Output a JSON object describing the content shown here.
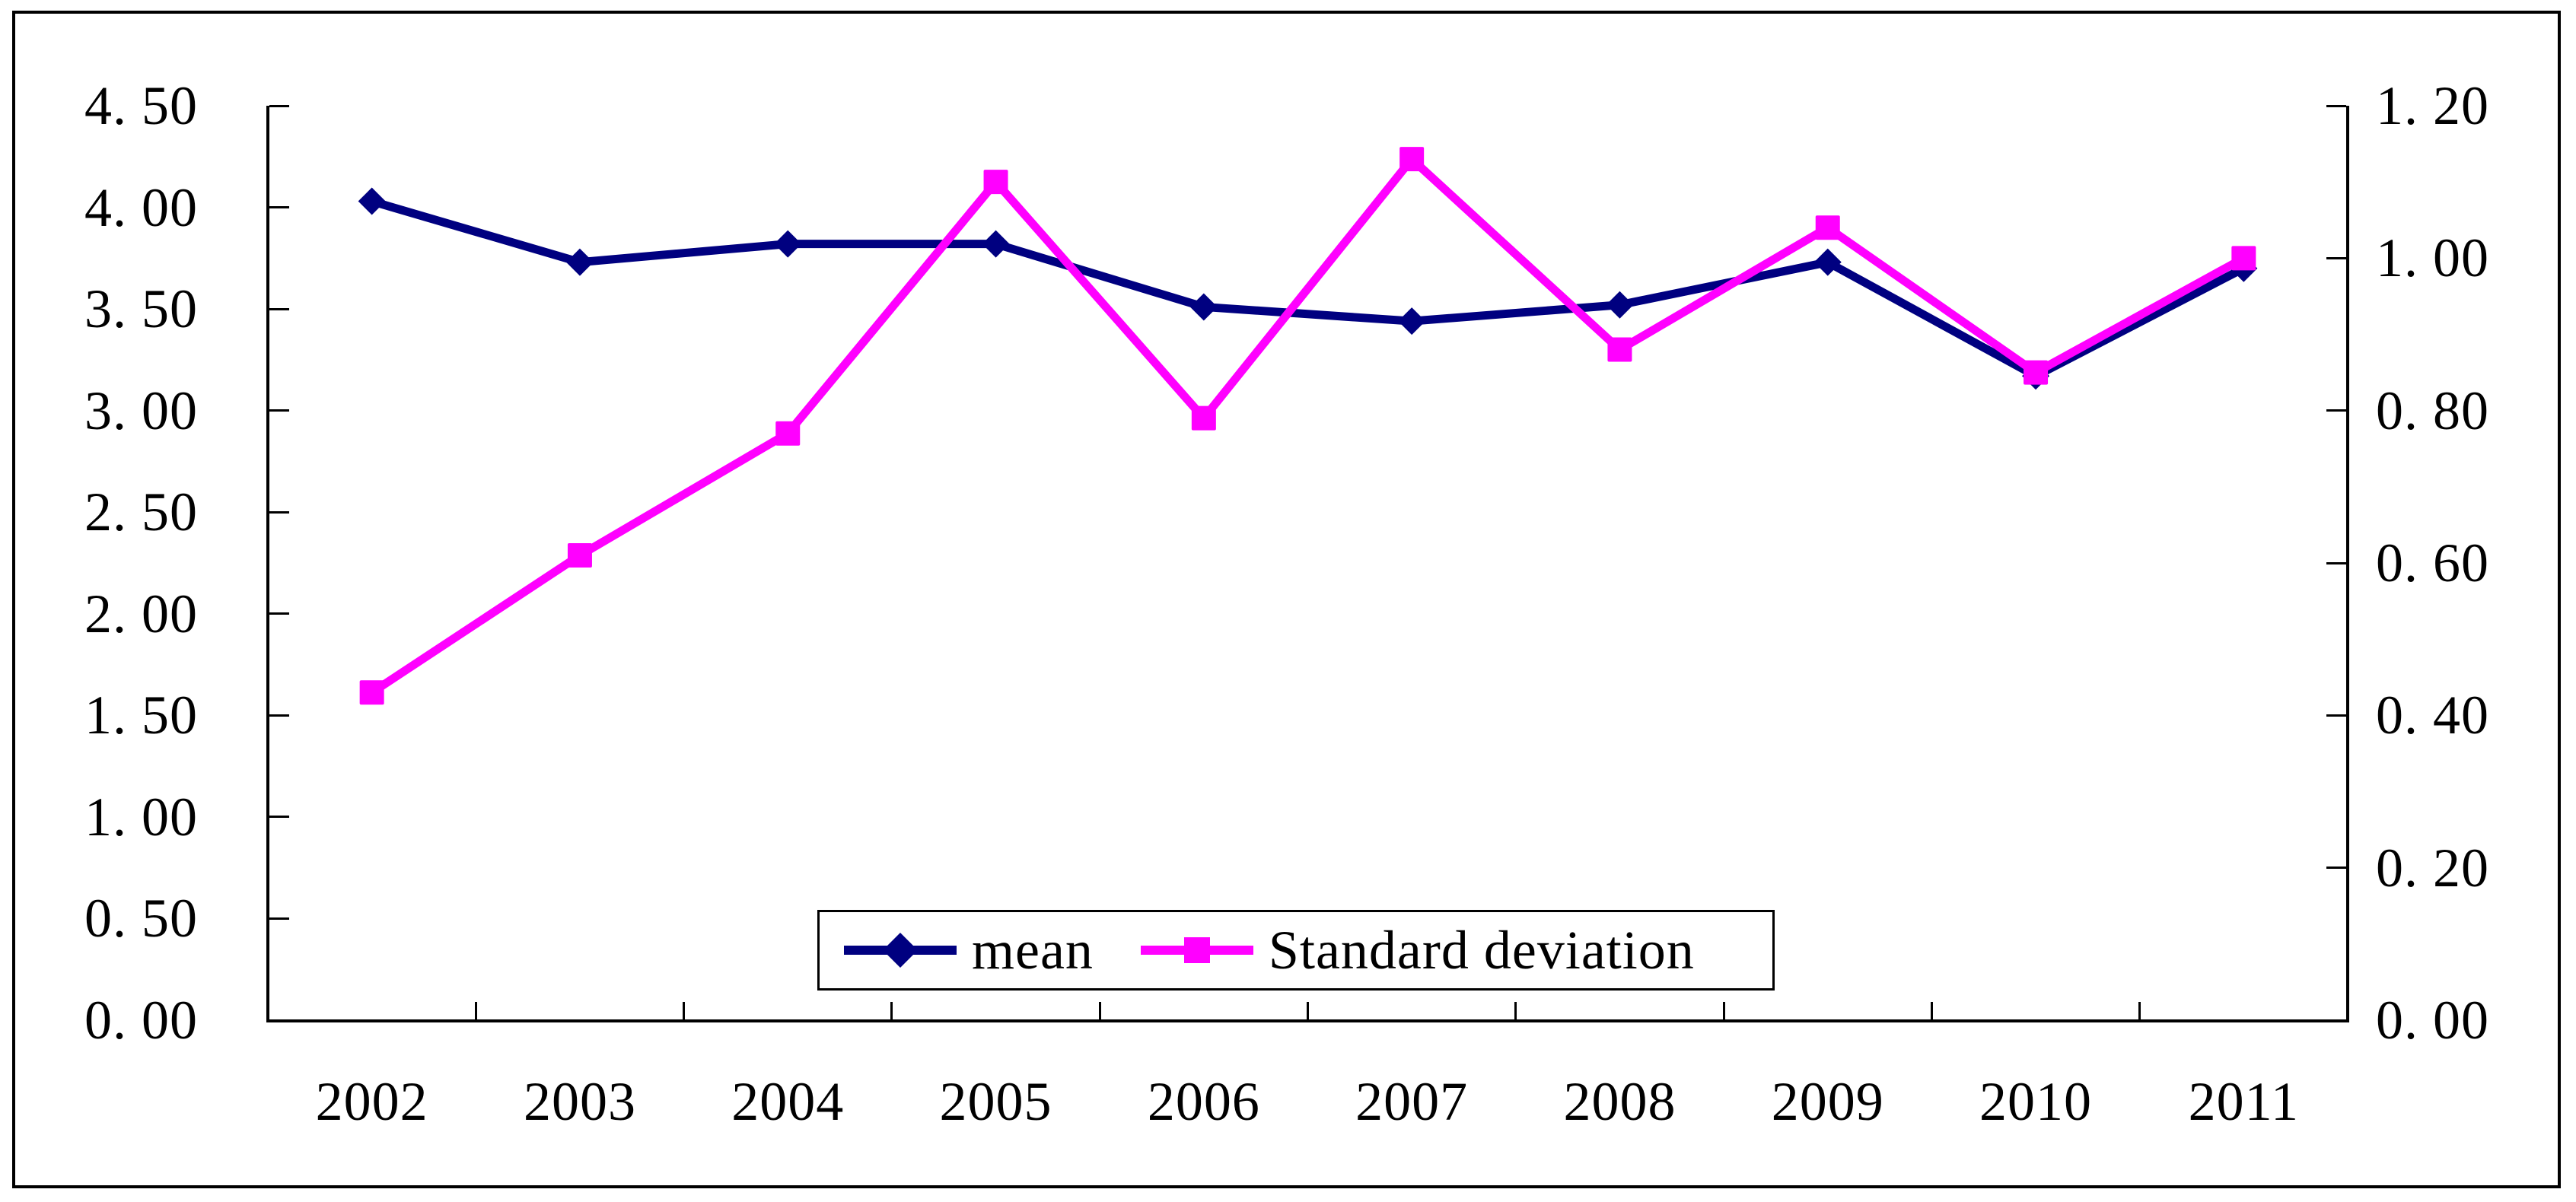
{
  "chart_data": {
    "type": "line",
    "categories": [
      "2002",
      "2003",
      "2004",
      "2005",
      "2006",
      "2007",
      "2008",
      "2009",
      "2010",
      "2011"
    ],
    "series": [
      {
        "name": "mean",
        "axis": "left",
        "color": "#000080",
        "marker": "diamond",
        "values": [
          4.03,
          3.73,
          3.82,
          3.82,
          3.51,
          3.44,
          3.52,
          3.73,
          3.17,
          3.7
        ]
      },
      {
        "name": "Standard deviation",
        "axis": "right",
        "color": "#FF00FF",
        "marker": "square",
        "values": [
          0.43,
          0.61,
          0.77,
          1.1,
          0.79,
          1.13,
          0.88,
          1.04,
          0.85,
          1.0
        ]
      }
    ],
    "left_axis": {
      "min": 0,
      "max": 4.5,
      "step": 0.5,
      "tick_labels": [
        "4. 50",
        "4. 00",
        "3. 50",
        "3. 00",
        "2. 50",
        "2. 00",
        "1. 50",
        "1. 00",
        "0. 50",
        "0. 00"
      ]
    },
    "right_axis": {
      "min": 0,
      "max": 1.2,
      "step": 0.2,
      "tick_labels": [
        "1. 20",
        "1. 00",
        "0. 80",
        "0. 60",
        "0. 40",
        "0. 20",
        "0. 00"
      ]
    },
    "legend": {
      "position": "inside-bottom-center",
      "entries": [
        "mean",
        "Standard deviation"
      ]
    },
    "grid": false,
    "background": "#FFFFFF",
    "axis_color": "#000000"
  }
}
